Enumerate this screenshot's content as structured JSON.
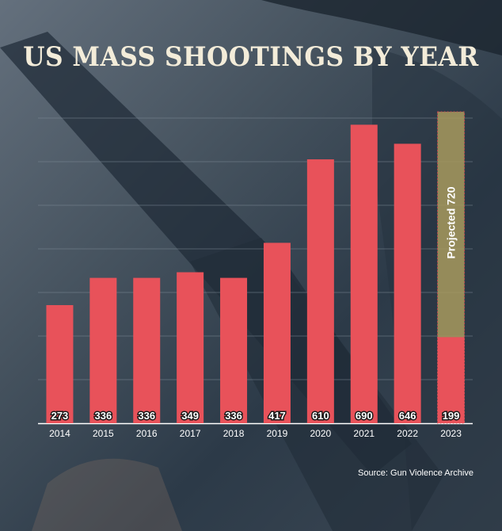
{
  "chart_data": {
    "type": "bar",
    "title": "US MASS SHOOTINGS BY YEAR",
    "categories": [
      "2014",
      "2015",
      "2016",
      "2017",
      "2018",
      "2019",
      "2020",
      "2021",
      "2022",
      "2023"
    ],
    "values": [
      273,
      336,
      336,
      349,
      336,
      417,
      610,
      690,
      646,
      199
    ],
    "projection": {
      "category": "2023",
      "value": 720,
      "label": "Projected 720"
    },
    "ylim": [
      0,
      720
    ],
    "grid": true,
    "source": "Source: Gun Violence Archive",
    "colors": {
      "bar": "#e8525a",
      "projection": "#a89a5e",
      "grid": "#7f8c98",
      "text": "#ffffff"
    }
  }
}
